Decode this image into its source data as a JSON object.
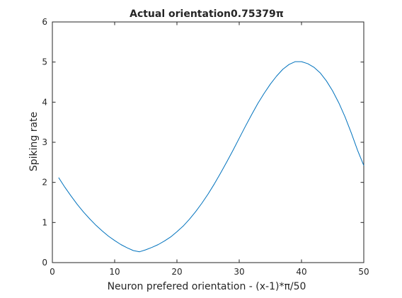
{
  "chart_data": {
    "type": "line",
    "title": "Actual orientation0.75379π",
    "xlabel": "Neuron prefered orientation - (x-1)*π/50",
    "ylabel": "Spiking rate",
    "xlim": [
      0,
      50
    ],
    "ylim": [
      0,
      6
    ],
    "xticks": [
      "0",
      "10",
      "20",
      "30",
      "40",
      "50"
    ],
    "yticks": [
      "0",
      "1",
      "2",
      "3",
      "4",
      "5",
      "6"
    ],
    "grid": false,
    "legend": "none",
    "line_color": "#0072BD",
    "series": [
      {
        "x": [
          1,
          2,
          3,
          4,
          5,
          6,
          7,
          8,
          9,
          10,
          11,
          12,
          13,
          14,
          15,
          16,
          17,
          18,
          19,
          20,
          21,
          22,
          23,
          24,
          25,
          26,
          27,
          28,
          29,
          30,
          31,
          32,
          33,
          34,
          35,
          36,
          37,
          38,
          39,
          40,
          41,
          42,
          43,
          44,
          45,
          46,
          47,
          48,
          49,
          50
        ],
        "y": [
          2.12,
          1.88,
          1.66,
          1.45,
          1.26,
          1.09,
          0.93,
          0.79,
          0.66,
          0.55,
          0.45,
          0.37,
          0.3,
          0.27,
          0.32,
          0.38,
          0.45,
          0.54,
          0.64,
          0.77,
          0.91,
          1.08,
          1.27,
          1.48,
          1.71,
          1.96,
          2.23,
          2.51,
          2.8,
          3.1,
          3.4,
          3.69,
          3.97,
          4.22,
          4.45,
          4.65,
          4.82,
          4.94,
          5.01,
          5.01,
          4.96,
          4.87,
          4.73,
          4.53,
          4.28,
          3.98,
          3.63,
          3.23,
          2.8,
          2.42
        ]
      }
    ]
  }
}
